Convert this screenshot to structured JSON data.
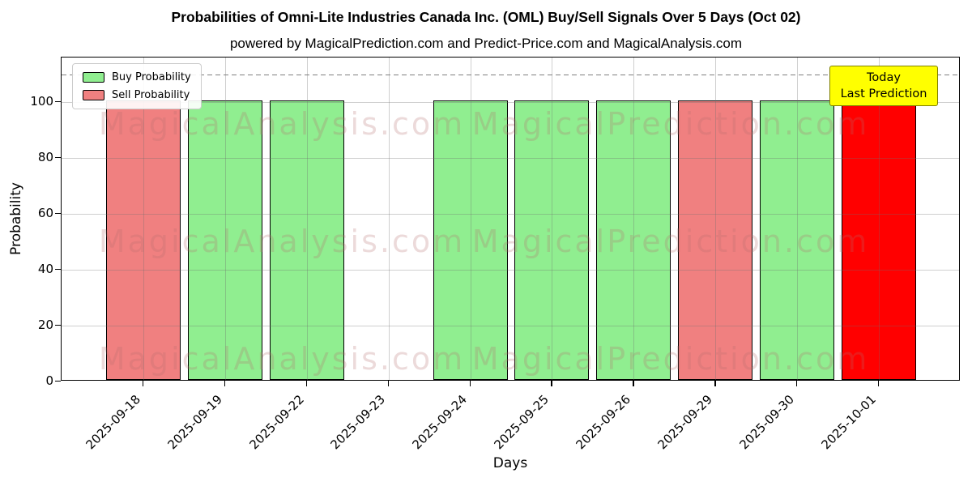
{
  "chart_data": {
    "type": "bar",
    "title": "Probabilities of Omni-Lite Industries Canada Inc. (OML) Buy/Sell Signals Over 5 Days (Oct 02)",
    "subtitle": "powered by MagicalPrediction.com and Predict-Price.com and MagicalAnalysis.com",
    "xlabel": "Days",
    "ylabel": "Probability",
    "ylim": [
      0,
      116
    ],
    "yticks": [
      0,
      20,
      40,
      60,
      80,
      100
    ],
    "dashed_guide_y": 110,
    "grid": true,
    "legend_position": "upper left",
    "categories": [
      "2025-09-18",
      "2025-09-19",
      "2025-09-22",
      "2025-09-23",
      "2025-09-24",
      "2025-09-25",
      "2025-09-26",
      "2025-09-29",
      "2025-09-30",
      "2025-10-01"
    ],
    "series": [
      {
        "name": "Buy Probability",
        "color": "#90EE90",
        "values": [
          0,
          100,
          100,
          0,
          100,
          100,
          100,
          0,
          100,
          0
        ]
      },
      {
        "name": "Sell Probability",
        "color": "#F08080",
        "values": [
          100,
          0,
          0,
          0,
          0,
          0,
          0,
          100,
          0,
          0
        ]
      },
      {
        "name": "Today Prediction",
        "color": "#FF0000",
        "values": [
          0,
          0,
          0,
          0,
          0,
          0,
          0,
          0,
          0,
          100
        ]
      }
    ],
    "annotation": {
      "line1": "Today",
      "line2": "Last Prediction",
      "bg_color": "#FFFF00",
      "border_color": "#808000"
    },
    "watermarks": {
      "left": "MagicalAnalysis.com",
      "right": "MagicalPrediction.com"
    },
    "colors": {
      "grid": "#6E6E6E",
      "dashed_line": "#7F7F7F",
      "axis": "#000000",
      "bar_edge": "#000000"
    }
  }
}
